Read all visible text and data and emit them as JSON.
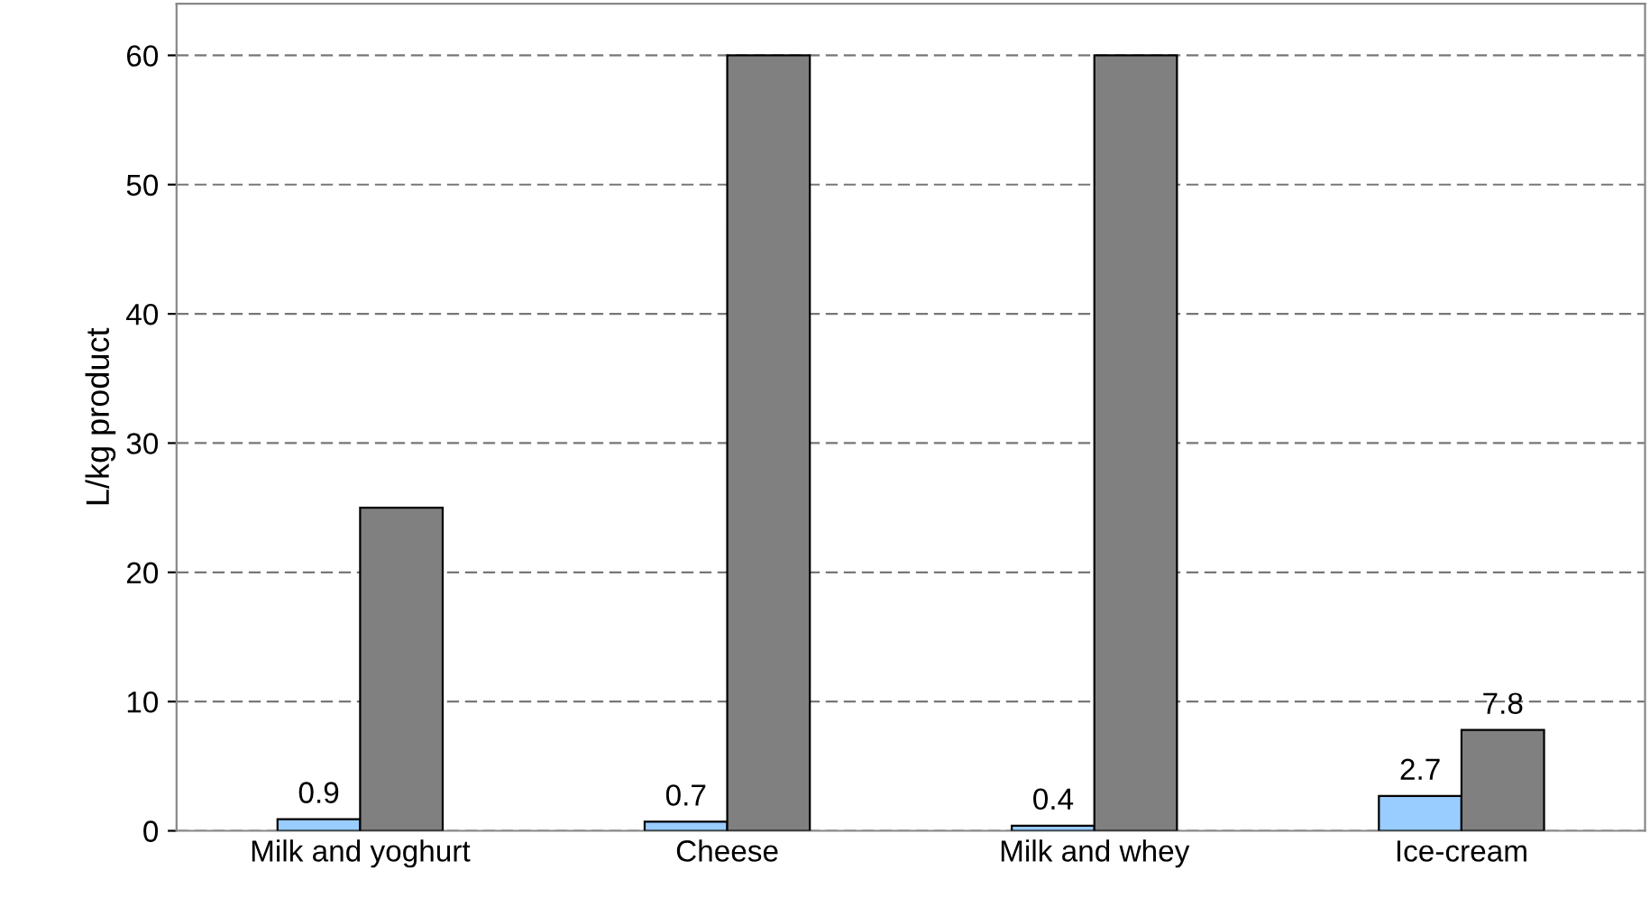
{
  "chart_data": {
    "type": "bar",
    "ylabel": "L/kg product",
    "categories": [
      "Milk and yoghurt",
      "Cheese",
      "Milk and whey",
      "Ice-cream"
    ],
    "series": [
      {
        "color": "#99ccff",
        "values": [
          0.9,
          0.7,
          0.4,
          2.7
        ],
        "value_labels": [
          "0.9",
          "0.7",
          "0.4",
          "2.7"
        ]
      },
      {
        "color": "#808080",
        "values": [
          25,
          60,
          60,
          7.8
        ],
        "value_labels": [
          null,
          null,
          null,
          "7.8"
        ]
      }
    ],
    "ylim": [
      0,
      64
    ],
    "yticks": [
      0,
      10,
      20,
      30,
      40,
      50,
      60
    ],
    "grid": "y"
  }
}
